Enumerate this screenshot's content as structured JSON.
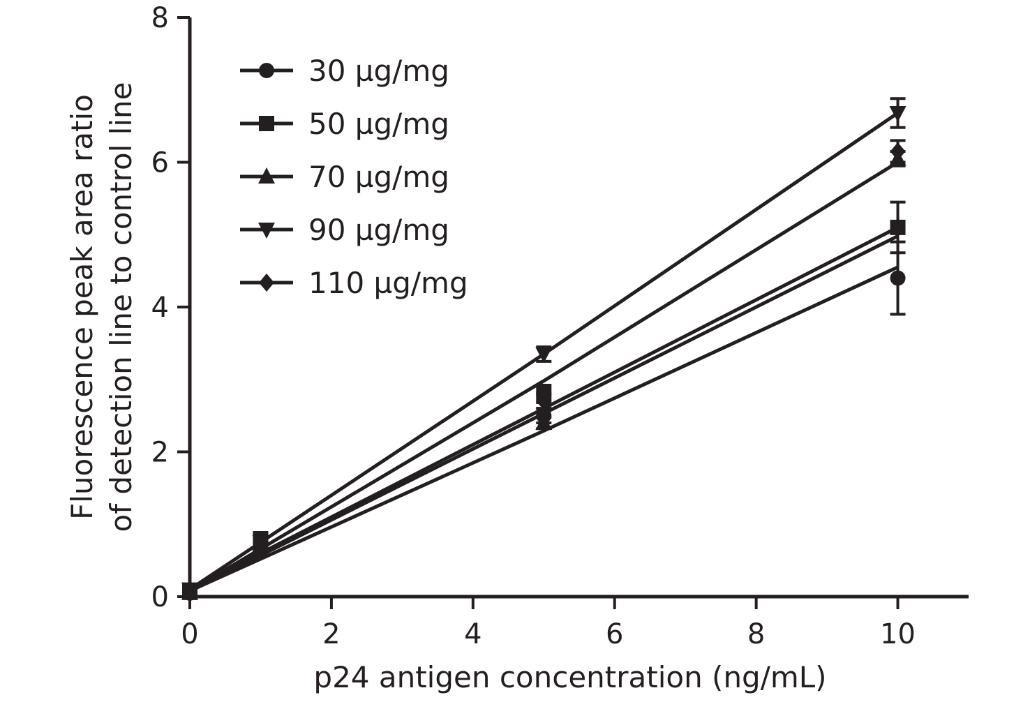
{
  "chart_data": {
    "type": "line",
    "title": "",
    "xlabel": "p24 antigen concentration (ng/mL)",
    "ylabel_lines": [
      "Fluorescence peak area ratio",
      "of detection line to control line"
    ],
    "xlim": [
      0,
      11
    ],
    "ylim": [
      0,
      8
    ],
    "x_ticks": [
      0,
      2,
      4,
      6,
      8,
      10
    ],
    "y_ticks": [
      0,
      2,
      4,
      6,
      8
    ],
    "x_tick_labels": [
      "0",
      "2",
      "4",
      "6",
      "8",
      "10"
    ],
    "y_tick_labels": [
      "0",
      "2",
      "4",
      "6",
      "8"
    ],
    "grid": false,
    "legend_position": "top-left",
    "x": [
      0,
      1,
      5,
      10
    ],
    "color": "#231f20",
    "series": [
      {
        "name": "30 µg/mg",
        "marker": "circle",
        "values": [
          0.05,
          0.62,
          2.5,
          4.4
        ],
        "error": [
          0.03,
          0.05,
          0.1,
          0.5
        ],
        "fit": [
          0.08,
          0.52,
          2.29,
          4.55
        ]
      },
      {
        "name": "50 µg/mg",
        "marker": "square",
        "values": [
          0.08,
          0.8,
          2.8,
          5.1
        ],
        "error": [
          0.03,
          0.06,
          0.12,
          0.35
        ],
        "fit": [
          0.1,
          0.6,
          2.6,
          5.1
        ]
      },
      {
        "name": "70 µg/mg",
        "marker": "triangle-up",
        "values": [
          0.05,
          0.72,
          2.4,
          6.05
        ],
        "error": [
          0.03,
          0.05,
          0.08,
          0.1
        ],
        "fit": [
          0.08,
          0.66,
          2.98,
          6.0
        ]
      },
      {
        "name": "90 µg/mg",
        "marker": "triangle-down",
        "values": [
          0.1,
          0.75,
          3.35,
          6.68
        ],
        "error": [
          0.03,
          0.05,
          0.1,
          0.2
        ],
        "fit": [
          0.1,
          0.75,
          3.35,
          6.68
        ]
      },
      {
        "name": "110 µg/mg",
        "marker": "diamond",
        "values": [
          0.06,
          0.68,
          2.7,
          6.15
        ],
        "error": [
          0.03,
          0.05,
          0.1,
          0.15
        ],
        "fit": [
          0.08,
          0.57,
          2.53,
          4.98
        ]
      }
    ]
  }
}
